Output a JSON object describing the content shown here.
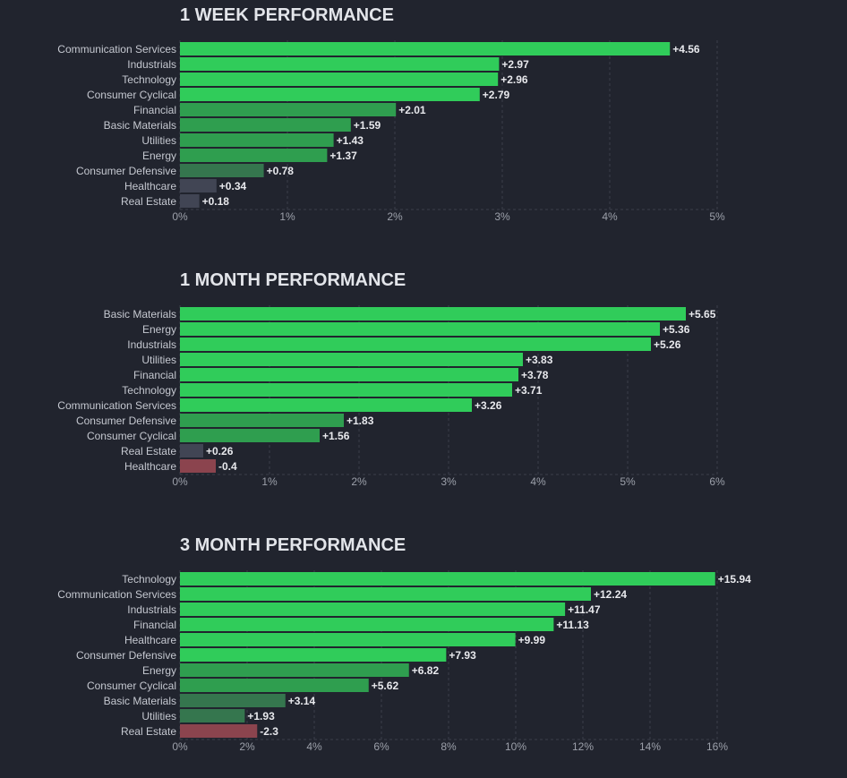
{
  "chart_data": [
    {
      "type": "bar",
      "orientation": "horizontal",
      "title": "1 WEEK PERFORMANCE",
      "categories": [
        "Communication Services",
        "Industrials",
        "Technology",
        "Consumer Cyclical",
        "Financial",
        "Basic Materials",
        "Utilities",
        "Energy",
        "Consumer Defensive",
        "Healthcare",
        "Real Estate"
      ],
      "values": [
        4.56,
        2.97,
        2.96,
        2.79,
        2.01,
        1.59,
        1.43,
        1.37,
        0.78,
        0.34,
        0.18
      ],
      "value_labels": [
        "+4.56",
        "+2.97",
        "+2.96",
        "+2.79",
        "+2.01",
        "+1.59",
        "+1.43",
        "+1.37",
        "+0.78",
        "+0.34",
        "+0.18"
      ],
      "xlim": [
        0,
        5
      ],
      "ticks": [
        0,
        1,
        2,
        3,
        4,
        5
      ],
      "tick_labels": [
        "0%",
        "1%",
        "2%",
        "3%",
        "4%",
        "5%"
      ],
      "grid": true
    },
    {
      "type": "bar",
      "orientation": "horizontal",
      "title": "1 MONTH PERFORMANCE",
      "categories": [
        "Basic Materials",
        "Energy",
        "Industrials",
        "Utilities",
        "Financial",
        "Technology",
        "Communication Services",
        "Consumer Defensive",
        "Consumer Cyclical",
        "Real Estate",
        "Healthcare"
      ],
      "values": [
        5.65,
        5.36,
        5.26,
        3.83,
        3.78,
        3.71,
        3.26,
        1.83,
        1.56,
        0.26,
        -0.4
      ],
      "value_labels": [
        "+5.65",
        "+5.36",
        "+5.26",
        "+3.83",
        "+3.78",
        "+3.71",
        "+3.26",
        "+1.83",
        "+1.56",
        "+0.26",
        "-0.4"
      ],
      "xlim": [
        0,
        6
      ],
      "ticks": [
        0,
        1,
        2,
        3,
        4,
        5,
        6
      ],
      "tick_labels": [
        "0%",
        "1%",
        "2%",
        "3%",
        "4%",
        "5%",
        "6%"
      ],
      "grid": true
    },
    {
      "type": "bar",
      "orientation": "horizontal",
      "title": "3 MONTH PERFORMANCE",
      "categories": [
        "Technology",
        "Communication Services",
        "Industrials",
        "Financial",
        "Healthcare",
        "Consumer Defensive",
        "Energy",
        "Consumer Cyclical",
        "Basic Materials",
        "Utilities",
        "Real Estate"
      ],
      "values": [
        15.94,
        12.24,
        11.47,
        11.13,
        9.99,
        7.93,
        6.82,
        5.62,
        3.14,
        1.93,
        -2.3
      ],
      "value_labels": [
        "+15.94",
        "+12.24",
        "+11.47",
        "+11.13",
        "+9.99",
        "+7.93",
        "+6.82",
        "+5.62",
        "+3.14",
        "+1.93",
        "-2.3"
      ],
      "xlim": [
        0,
        16
      ],
      "ticks": [
        0,
        2,
        4,
        6,
        8,
        10,
        12,
        14,
        16
      ],
      "tick_labels": [
        "0%",
        "2%",
        "4%",
        "6%",
        "8%",
        "10%",
        "12%",
        "14%",
        "16%"
      ],
      "grid": true
    }
  ],
  "colors": {
    "background": "#21242e",
    "positive_strong": "#30cc5a",
    "positive_mid": "#2f9e4f",
    "positive_weak": "#35764e",
    "neutral": "#414554",
    "negative_weak": "#8b444e",
    "negative_mid": "#bf4045"
  }
}
